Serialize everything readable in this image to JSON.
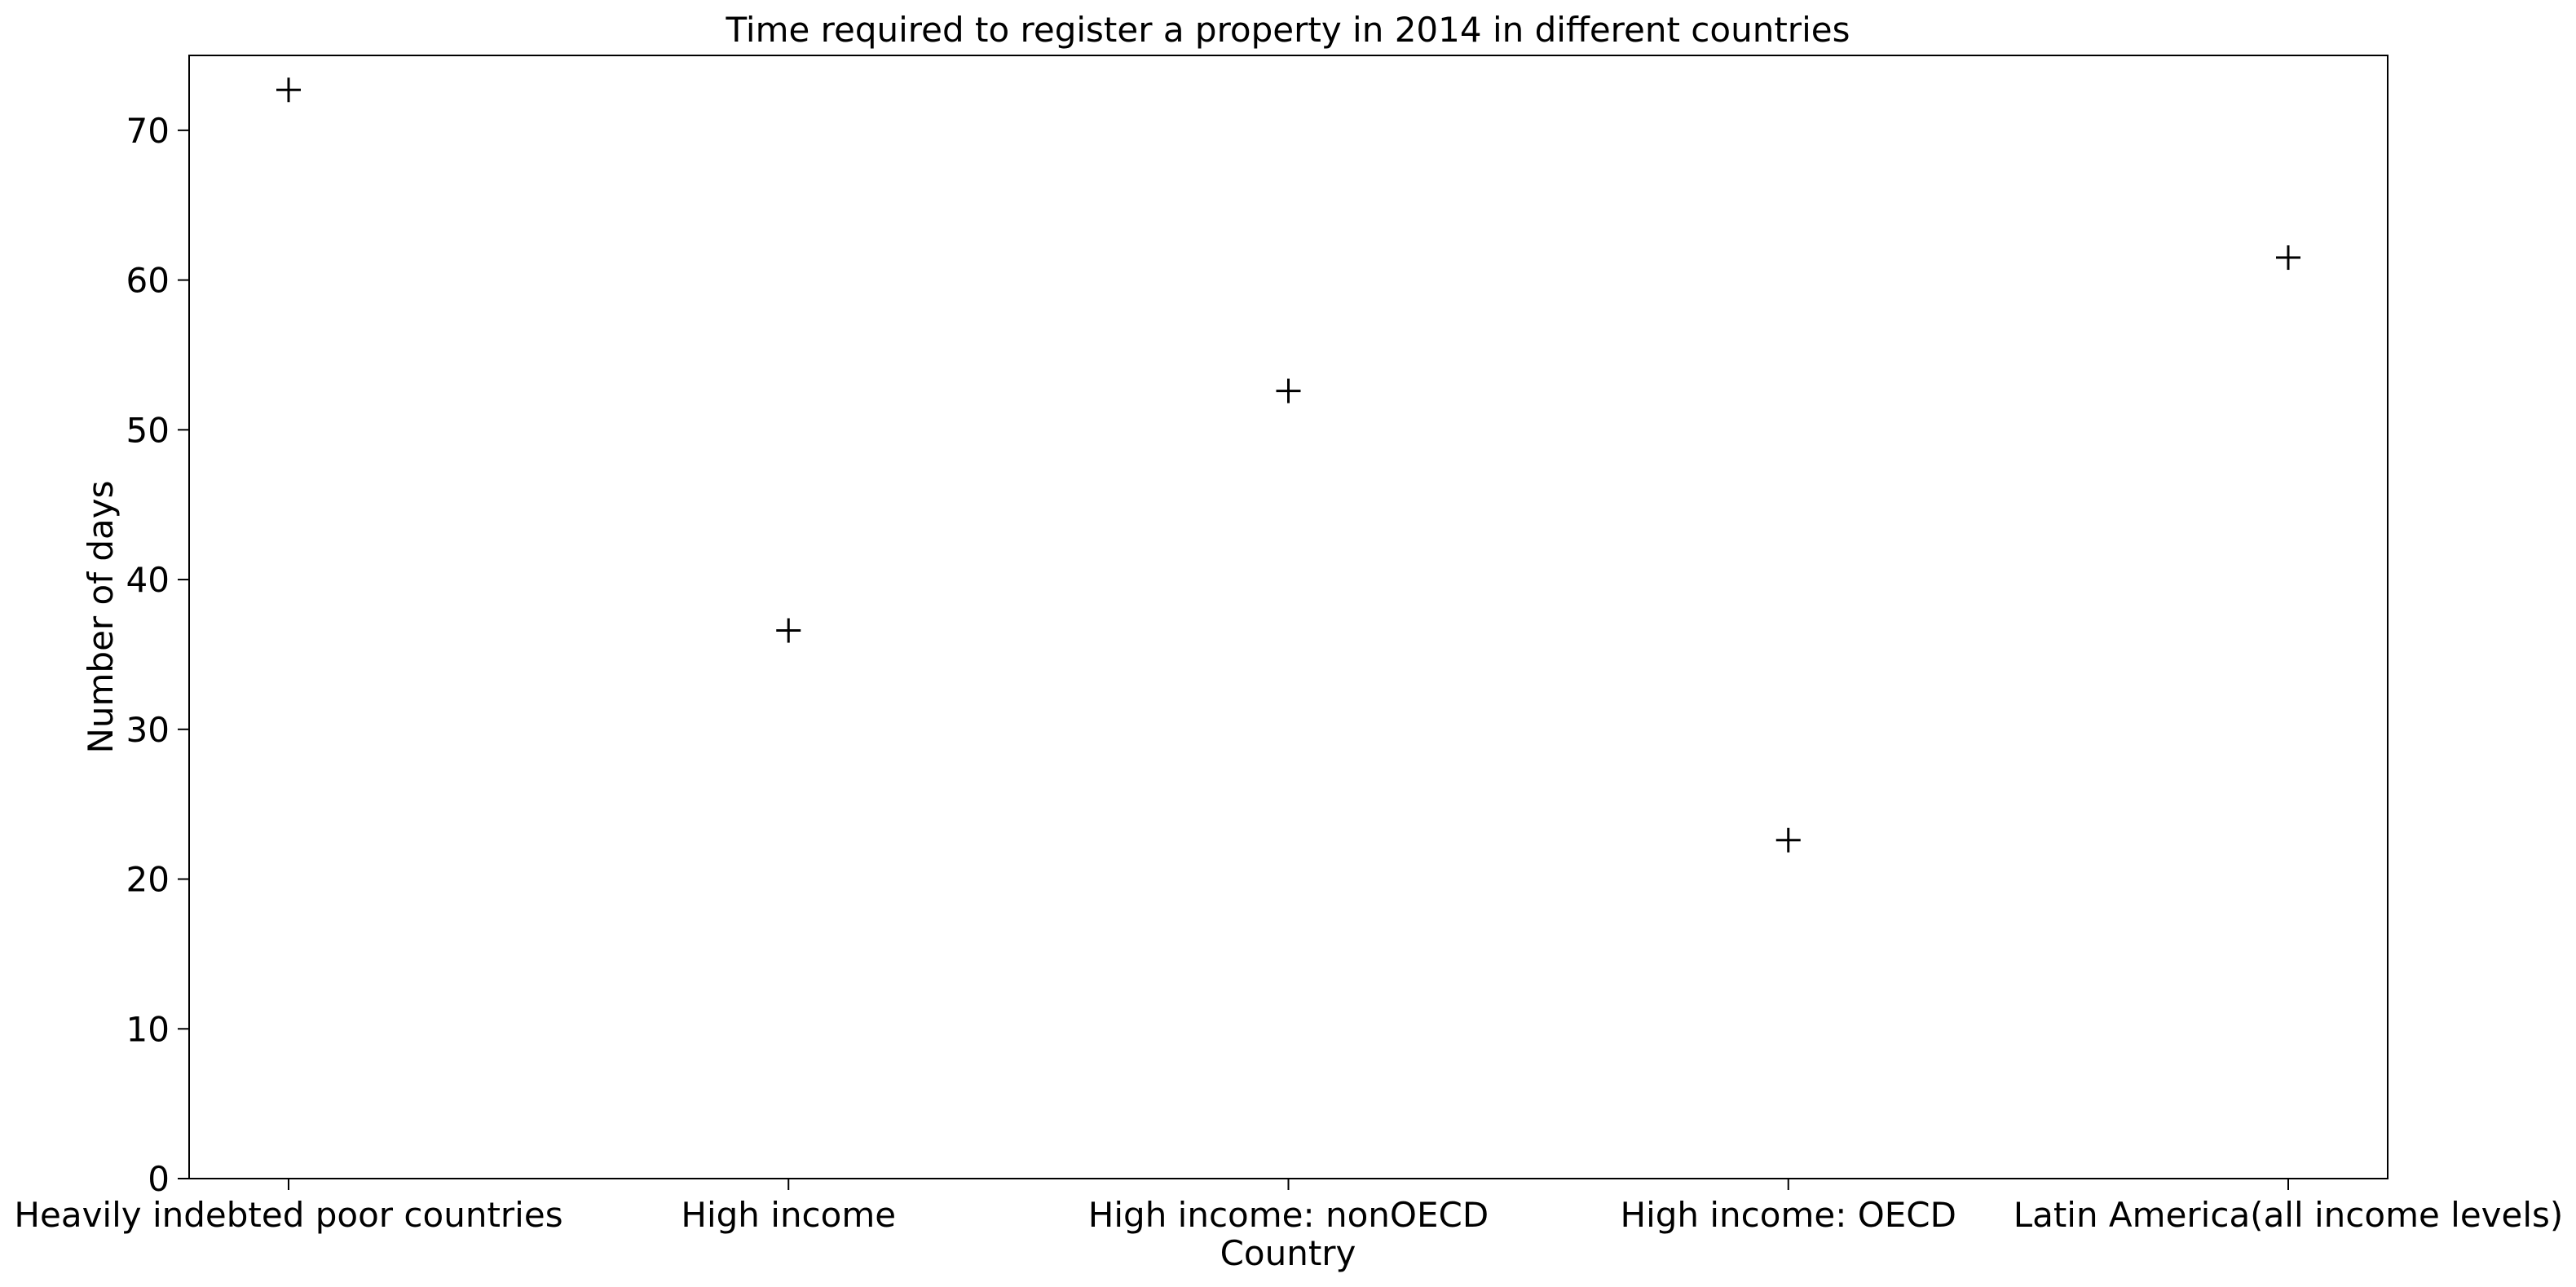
{
  "chart_data": {
    "type": "scatter",
    "title": "Time required to register a property in 2014 in different countries",
    "xlabel": "Country",
    "ylabel": "Number of days",
    "categories": [
      "Heavily indebted poor countries",
      "High income",
      "High income: nonOECD",
      "High income: OECD",
      "Latin America(all income levels)"
    ],
    "values": [
      72.7,
      36.6,
      52.6,
      22.6,
      61.5
    ],
    "ylim": [
      0,
      75
    ],
    "yticks": [
      0,
      10,
      20,
      30,
      40,
      50,
      60,
      70
    ],
    "marker": "+",
    "marker_color": "#000000",
    "grid": false,
    "legend": "none"
  }
}
